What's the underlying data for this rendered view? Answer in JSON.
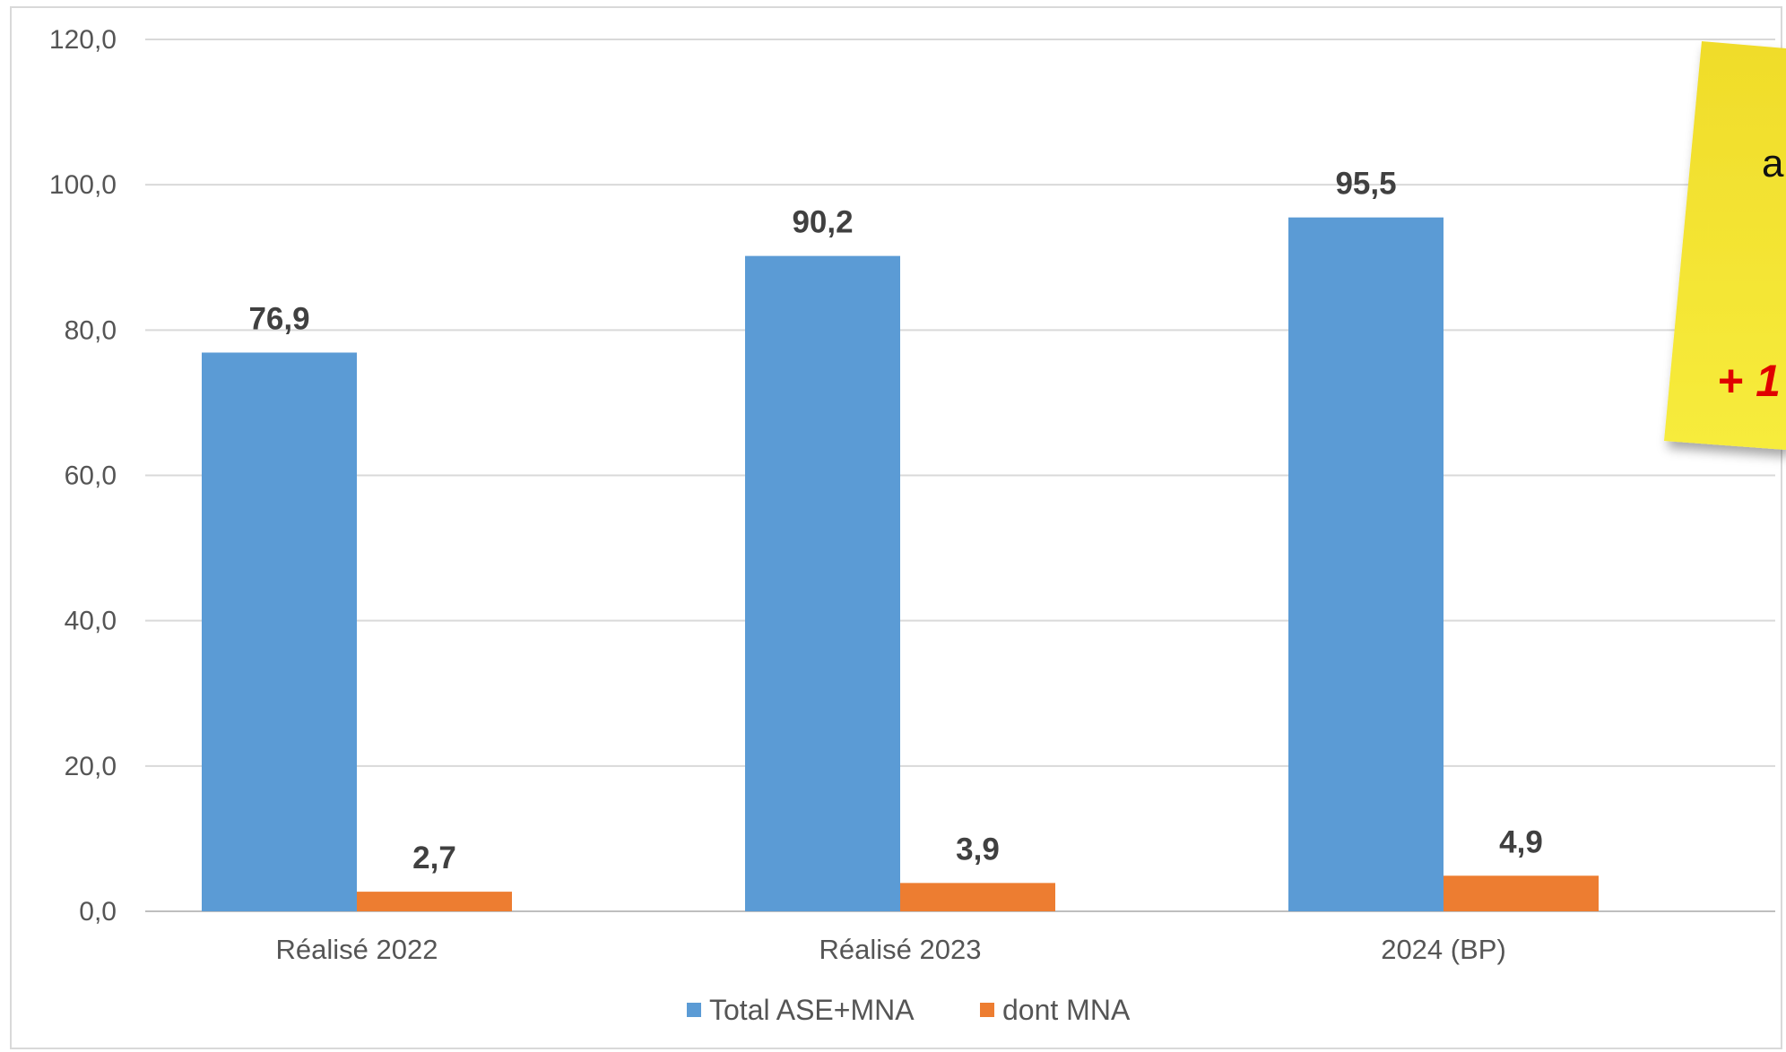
{
  "chart_data": {
    "type": "bar",
    "categories": [
      "Réalisé 2022",
      "Réalisé 2023",
      "2024 (BP)"
    ],
    "series": [
      {
        "name": "Total ASE+MNA",
        "color": "#5b9bd5",
        "values": [
          76.9,
          90.2,
          95.5
        ],
        "labels": [
          "76,9",
          "90,2",
          "95,5"
        ]
      },
      {
        "name": "dont MNA",
        "color": "#ed7d31",
        "values": [
          2.7,
          3.9,
          4.9
        ],
        "labels": [
          "2,7",
          "3,9",
          "4,9"
        ]
      }
    ],
    "ylim": [
      0,
      120
    ],
    "yticks": [
      0,
      20,
      40,
      60,
      80,
      100,
      120
    ],
    "ytick_labels": [
      "0,0",
      "20,0",
      "40,0",
      "60,0",
      "80,0",
      "100,0",
      "120,0"
    ],
    "grid": true,
    "legend": "bottom",
    "title": "",
    "xlabel": "",
    "ylabel": ""
  },
  "sticky_note": {
    "text_fragment": "a",
    "highlight_fragment": "+ 1",
    "background_color": "#f3e233",
    "highlight_color": "#e00000"
  }
}
